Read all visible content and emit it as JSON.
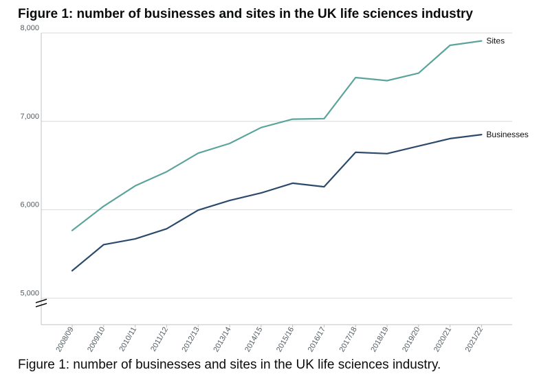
{
  "chart_data": {
    "type": "line",
    "title": "Figure 1: number of businesses and sites in the UK life sciences industry",
    "caption": "Figure 1: number of businesses and sites in the UK life sciences industry.",
    "xlabel": "",
    "ylabel": "",
    "ylim": [
      4700,
      8000
    ],
    "yticks": [
      5000,
      6000,
      7000,
      8000
    ],
    "ytick_labels": [
      "5,000",
      "6,000",
      "7,000",
      "8,000"
    ],
    "grid": true,
    "axis_break": true,
    "categories": [
      "2008/09",
      "2009/10",
      "2010/11",
      "2011/12",
      "2012/13",
      "2013/14",
      "2014/15",
      "2015/16",
      "2016/17",
      "2017/18",
      "2018/19",
      "2019/20",
      "2020/21",
      "2021/22"
    ],
    "series": [
      {
        "name": "Sites",
        "color": "#5ba49c",
        "values": [
          5765,
          6040,
          6270,
          6430,
          6640,
          6750,
          6930,
          7025,
          7030,
          7495,
          7460,
          7545,
          7860,
          7910
        ]
      },
      {
        "name": "Businesses",
        "color": "#2b4a6b",
        "values": [
          5310,
          5605,
          5670,
          5785,
          5995,
          6105,
          6190,
          6300,
          6260,
          6650,
          6635,
          6720,
          6805,
          6850
        ]
      }
    ]
  }
}
